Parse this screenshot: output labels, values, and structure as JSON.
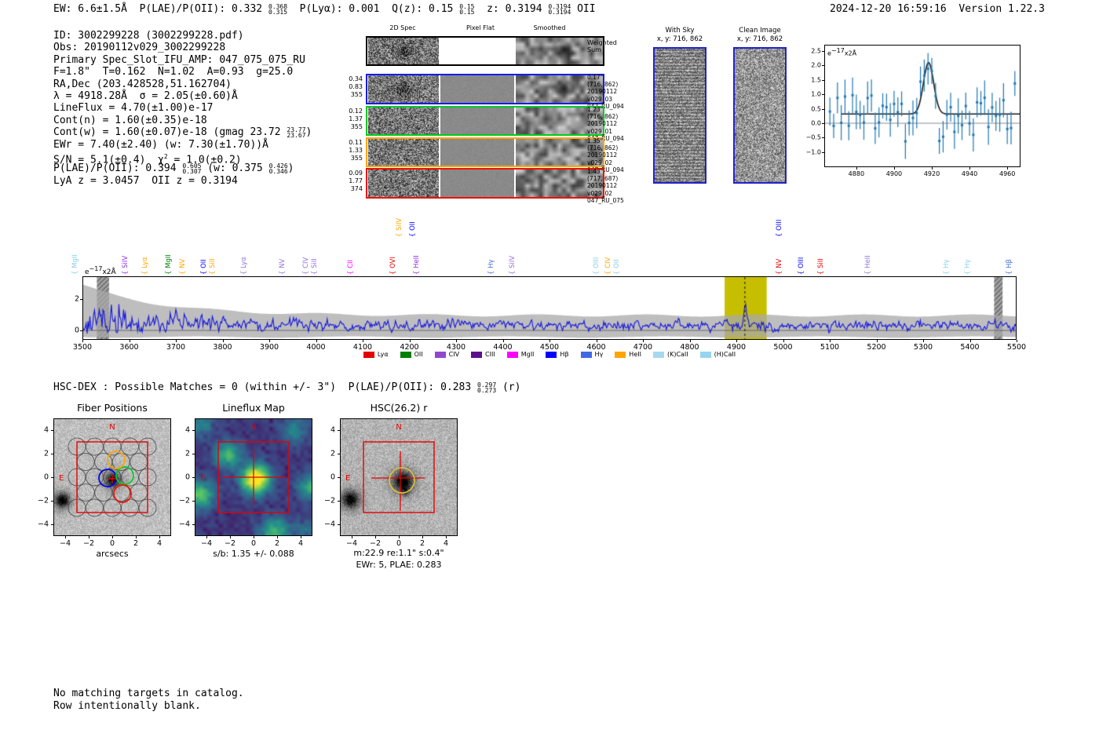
{
  "header": {
    "left_segments": [
      {
        "t": "EW: 6.6±1.5Å  P(LAE)/P(OII): 0.332 "
      },
      {
        "f": [
          "0.368",
          "0.315"
        ]
      },
      {
        "t": "  P(Lyα): 0.001  Q(z): 0.15 "
      },
      {
        "f": [
          "0.15",
          "0.15"
        ]
      },
      {
        "t": "  z: 0.3194 "
      },
      {
        "f": [
          "0.3194",
          "0.3194"
        ]
      },
      {
        "t": " OII"
      }
    ],
    "timestamp": "2024-12-20 16:59:16",
    "version_label": "Version 1.22.3"
  },
  "info_block": {
    "lines": [
      [
        {
          "t": "ID: 3002299228 (3002299228.pdf)"
        }
      ],
      [
        {
          "t": "Obs: 20190112v029_3002299228"
        }
      ],
      [
        {
          "t": "Primary Spec_Slot_IFU_AMP: 047_075_075_RU"
        }
      ],
      [
        {
          "t": "F=1.8\"  T=0.162  N=1.02  A=0.93  g=25.0"
        }
      ],
      [
        {
          "t": "RA,Dec (203.428528,51.162704)"
        }
      ],
      [
        {
          "t": "λ = 4918.28Å  σ = 2.05(±0.60)Å"
        }
      ],
      [
        {
          "t": "LineFlux = 4.70(±1.00)e-17"
        }
      ],
      [
        {
          "t": "Cont(n) = 1.60(±0.35)e-18"
        }
      ],
      [
        {
          "t": "Cont(w) = 1.60(±0.07)e-18 (gmag 23.72 "
        },
        {
          "f": [
            "23.77",
            "23.67"
          ]
        },
        {
          "t": ")"
        }
      ],
      [
        {
          "t": "EWr = 7.40(±2.40) (w: 7.30(±1.70))Å"
        }
      ],
      [
        {
          "t": "S/N = 5.1(±0.4)  χ"
        },
        {
          "sup": "2"
        },
        {
          "t": " = 1.0(±0.2)"
        }
      ],
      [
        {
          "t": "P(LAE)/P(OII): 0.394 "
        },
        {
          "f": [
            "0.605",
            "0.307"
          ]
        },
        {
          "t": " (w: 0.375 "
        },
        {
          "f": [
            "0.426",
            "0.346"
          ]
        },
        {
          "t": ")"
        }
      ],
      [
        {
          "t": "LyA z = 3.0457  OII z = 0.3194"
        }
      ]
    ]
  },
  "spec2d": {
    "column_headers": [
      "2D Spec",
      "Pixel Flat",
      "Smoothed"
    ],
    "rows": [
      {
        "border": "#000000",
        "left": [],
        "right": [
          "Weighted",
          "Sum"
        ],
        "flat": "white",
        "blob": true
      },
      {
        "border": "#1a1aee",
        "left": [
          "0.34",
          "0.83",
          "355"
        ],
        "right": [
          "0.17\"",
          "(716, 862)",
          "20190112",
          "v029_03",
          "047_RU_094"
        ],
        "flat": "gray",
        "blob": true
      },
      {
        "border": "#00cc22",
        "left": [
          "0.12",
          "1.37",
          "355"
        ],
        "right": [
          "1.23\"",
          "(716, 862)",
          "20190112",
          "v029_01",
          "047_RU_094"
        ],
        "flat": "gray",
        "blob": false
      },
      {
        "border": "#ffa500",
        "left": [
          "0.11",
          "1.33",
          "355"
        ],
        "right": [
          "1.35\"",
          "(716, 862)",
          "20190112",
          "v029_02",
          "047_RU_094"
        ],
        "flat": "gray",
        "blob": false
      },
      {
        "border": "#ee1100",
        "left": [
          "0.09",
          "1.77",
          "374"
        ],
        "right": [
          "1.43\"",
          "(717, 687)",
          "20190112",
          "v029_02",
          "047_RU_075"
        ],
        "flat": "gray",
        "blob": false
      }
    ]
  },
  "sky_panels": [
    {
      "title": "With Sky",
      "subtitle": "x, y: 716, 862",
      "border": "#2222cc",
      "style": "stripes"
    },
    {
      "title": "Clean Image",
      "subtitle": "x, y: 716, 862",
      "border": "#2222cc",
      "style": "noise"
    }
  ],
  "chart_data": [
    {
      "id": "line_fit_inset",
      "type": "scatter",
      "annotation": {
        "base": "e",
        "exp": "−17",
        "suffix": "x2Å"
      },
      "x_ticks": [
        4880,
        4900,
        4920,
        4940,
        4960
      ],
      "y_ticks": [
        2.5,
        2.0,
        1.5,
        1.0,
        0.5,
        0.0,
        -0.5,
        -1.0
      ],
      "x_range": [
        4863,
        4967
      ],
      "y_range": [
        -1.52,
        2.69
      ],
      "fit": {
        "shape": "gaussian",
        "center": 4918.28,
        "sigma_A": 2.05,
        "peak": 2.1,
        "baseline": 0.32,
        "color": "#1a1a1a"
      },
      "marker_color": "#1f77b4",
      "note": "noisy flux points with error bars about ±0.45 around baseline 0.32, Gaussian emission line at 4918.28Å"
    },
    {
      "id": "full_spectrum",
      "type": "line",
      "annotation": {
        "base": "e",
        "exp": "−17",
        "suffix": "x2Å"
      },
      "x_range": [
        3500,
        5500
      ],
      "x_tick_step": 100,
      "y_ticks": [
        0,
        2
      ],
      "y_range": [
        -0.55,
        3.45
      ],
      "line_color": "#1515dd",
      "error_band_color": "rgba(168,168,168,0.75)",
      "detection_wavelength": 4918.28,
      "highlight_band": [
        4875,
        4965
      ],
      "highlight_color": "#c6be00",
      "hatched_bands": [
        [
          3531,
          3557
        ],
        [
          5452,
          5470
        ]
      ],
      "emission_line_labels": [
        {
          "label": "MgII",
          "wave": 3497,
          "color": "#87ceeb",
          "tier": 0
        },
        {
          "label": "SiIV",
          "wave": 3604,
          "color": "#8a2be2",
          "tier": 0
        },
        {
          "label": "Lyα",
          "wave": 3646,
          "color": "#ffa500",
          "tier": 0
        },
        {
          "label": "MgII",
          "wave": 3697,
          "color": "#008000",
          "tier": 0
        },
        {
          "label": "NV",
          "wave": 3727,
          "color": "#ffa500",
          "tier": 0
        },
        {
          "label": "OII",
          "wave": 3772,
          "color": "#0000ff",
          "tier": 0
        },
        {
          "label": "SiII",
          "wave": 3791,
          "color": "#ffa500",
          "tier": 0
        },
        {
          "label": "Lyα",
          "wave": 3858,
          "color": "#9370db",
          "tier": 0
        },
        {
          "label": "NV",
          "wave": 3940,
          "color": "#9370db",
          "tier": 0
        },
        {
          "label": "CIV",
          "wave": 3991,
          "color": "#9370db",
          "tier": 0
        },
        {
          "label": "SiII",
          "wave": 4009,
          "color": "#9370db",
          "tier": 0
        },
        {
          "label": "CII",
          "wave": 4087,
          "color": "#ff00ff",
          "tier": 0
        },
        {
          "label": "OVI",
          "wave": 4177,
          "color": "#e50000",
          "tier": 0
        },
        {
          "label": "SiIV",
          "wave": 4191,
          "color": "#ffa500",
          "tier": 1
        },
        {
          "label": "OII",
          "wave": 4219,
          "color": "#0000ff",
          "tier": 1
        },
        {
          "label": "HeII",
          "wave": 4228,
          "color": "#8a2be2",
          "tier": 0
        },
        {
          "label": "Hγ",
          "wave": 4388,
          "color": "#4169e1",
          "tier": 0
        },
        {
          "label": "SiIV",
          "wave": 4433,
          "color": "#9370db",
          "tier": 0
        },
        {
          "label": "OIII",
          "wave": 4613,
          "color": "#87ceeb",
          "tier": 0
        },
        {
          "label": "CIV",
          "wave": 4638,
          "color": "#ffa500",
          "tier": 0
        },
        {
          "label": "OII",
          "wave": 4656,
          "color": "#87ceeb",
          "tier": 0
        },
        {
          "label": "OIII",
          "wave": 5004,
          "color": "#0000ff",
          "tier": 1
        },
        {
          "label": "NV",
          "wave": 5004,
          "color": "#e50000",
          "tier": 0
        },
        {
          "label": "OIII",
          "wave": 5051,
          "color": "#0000ff",
          "tier": 0
        },
        {
          "label": "SiII",
          "wave": 5093,
          "color": "#e50000",
          "tier": 0
        },
        {
          "label": "HeII",
          "wave": 5194,
          "color": "#9370db",
          "tier": 0
        },
        {
          "label": "Hγ",
          "wave": 5362,
          "color": "#87ceeb",
          "tier": 0
        },
        {
          "label": "Hγ",
          "wave": 5408,
          "color": "#87ceeb",
          "tier": 0
        },
        {
          "label": "Hβ",
          "wave": 5497,
          "color": "#4169e1",
          "tier": 0
        }
      ],
      "legend": [
        {
          "label": "Lyα",
          "color": "#e50000"
        },
        {
          "label": "OII",
          "color": "#008000"
        },
        {
          "label": "CIV",
          "color": "#9147cf"
        },
        {
          "label": "CIII",
          "color": "#5c0f8b"
        },
        {
          "label": "MgII",
          "color": "#ff00ff"
        },
        {
          "label": "Hβ",
          "color": "#0000ff"
        },
        {
          "label": "Hγ",
          "color": "#4169e1"
        },
        {
          "label": "HeII",
          "color": "#ffa500"
        },
        {
          "label": "(K)CaII",
          "color": "#a8d8ef"
        },
        {
          "label": "(H)CaII",
          "color": "#97d4ef"
        }
      ]
    }
  ],
  "matches_line": {
    "segments": [
      {
        "t": "HSC-DEX : Possible Matches = 0 (within +/- 3\")  P(LAE)/P(OII): 0.283 "
      },
      {
        "f": [
          "0.297",
          "0.273"
        ]
      },
      {
        "t": " (r)"
      }
    ]
  },
  "cutouts": {
    "ticks": [
      -4,
      -2,
      0,
      2,
      4
    ],
    "north_label": "N",
    "east_label": "E",
    "annotation_color": "#e60000",
    "fiber": {
      "title": "Fiber Positions",
      "xlabel": "arcsecs"
    },
    "lineflux": {
      "title": "Lineflux Map",
      "xlabel": "s/b: 1.35 +/- 0.088"
    },
    "hsc": {
      "title": "HSC(26.2) r",
      "caption1": "m:22.9  re:1.1\"  s:0.4\"",
      "caption2": "EWr: 5, PLAE: 0.283",
      "aperture_color": "#e0c235"
    }
  },
  "footer": {
    "line1": "No matching targets in catalog.",
    "line2": "Row intentionally blank."
  },
  "noise_seed": 20190112
}
